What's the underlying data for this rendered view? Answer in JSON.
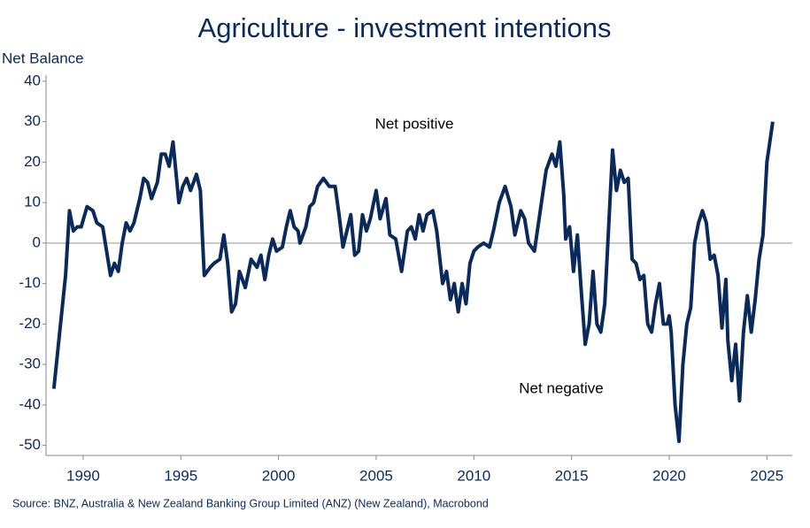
{
  "chart_data": {
    "type": "line",
    "title": "Agriculture - investment intentions",
    "y_label": "Net Balance",
    "source": "Source: BNZ, Australia & New Zealand Banking Group Limited (ANZ) (New Zealand), Macrobond",
    "annotations": [
      {
        "text": "Net positive"
      },
      {
        "text": "Net negative"
      }
    ],
    "xlim": [
      1988.1,
      2026.3
    ],
    "ylim": [
      -52.5,
      41.5
    ],
    "xticks": [
      1990,
      1995,
      2000,
      2005,
      2010,
      2015,
      2020,
      2025
    ],
    "yticks": [
      -50,
      -40,
      -30,
      -20,
      -10,
      0,
      10,
      20,
      30,
      40
    ],
    "zero_line": true,
    "series": [
      {
        "name": "Net Balance",
        "color": "#0b2a5c",
        "x": [
          1988.5,
          1988.8,
          1989.1,
          1989.3,
          1989.5,
          1989.7,
          1989.9,
          1990.2,
          1990.5,
          1990.7,
          1991.0,
          1991.2,
          1991.4,
          1991.6,
          1991.8,
          1992.0,
          1992.2,
          1992.4,
          1992.6,
          1992.9,
          1993.1,
          1993.3,
          1993.5,
          1993.8,
          1994.0,
          1994.2,
          1994.4,
          1994.6,
          1994.9,
          1995.1,
          1995.3,
          1995.5,
          1995.8,
          1996.0,
          1996.1,
          1996.2,
          1996.5,
          1996.7,
          1997.0,
          1997.2,
          1997.4,
          1997.6,
          1997.8,
          1998.0,
          1998.3,
          1998.6,
          1998.9,
          1999.1,
          1999.3,
          1999.5,
          1999.7,
          1999.9,
          2000.2,
          2000.4,
          2000.6,
          2000.8,
          2001.0,
          2001.1,
          2001.4,
          2001.6,
          2001.8,
          2002.0,
          2002.3,
          2002.6,
          2002.9,
          2003.1,
          2003.3,
          2003.5,
          2003.7,
          2003.9,
          2004.1,
          2004.3,
          2004.5,
          2004.7,
          2005.0,
          2005.2,
          2005.5,
          2005.7,
          2006.0,
          2006.3,
          2006.6,
          2006.8,
          2007.0,
          2007.2,
          2007.4,
          2007.6,
          2007.9,
          2008.1,
          2008.4,
          2008.6,
          2008.8,
          2009.0,
          2009.2,
          2009.4,
          2009.6,
          2009.8,
          2010.0,
          2010.2,
          2010.5,
          2010.8,
          2011.0,
          2011.3,
          2011.6,
          2011.9,
          2012.1,
          2012.4,
          2012.6,
          2012.8,
          2013.1,
          2013.4,
          2013.7,
          2014.0,
          2014.2,
          2014.4,
          2014.6,
          2014.7,
          2014.9,
          2015.1,
          2015.3,
          2015.5,
          2015.7,
          2015.9,
          2016.1,
          2016.3,
          2016.5,
          2016.7,
          2016.9,
          2017.1,
          2017.3,
          2017.5,
          2017.7,
          2017.9,
          2018.1,
          2018.3,
          2018.5,
          2018.7,
          2018.9,
          2019.1,
          2019.3,
          2019.5,
          2019.7,
          2019.9,
          2020.0,
          2020.1,
          2020.3,
          2020.5,
          2020.7,
          2020.9,
          2021.1,
          2021.3,
          2021.5,
          2021.7,
          2021.9,
          2022.1,
          2022.3,
          2022.5,
          2022.7,
          2022.9,
          2023.0,
          2023.2,
          2023.4,
          2023.6,
          2023.8,
          2024.0,
          2024.2,
          2024.4,
          2024.6,
          2024.8,
          2025.0,
          2025.3
        ],
        "values": [
          -36,
          -22,
          -8,
          8,
          3,
          4,
          4,
          9,
          8,
          5,
          4,
          -2,
          -8,
          -5,
          -7,
          0,
          5,
          3,
          5,
          11,
          16,
          15,
          11,
          15,
          22,
          22,
          19,
          25,
          10,
          14,
          16,
          13,
          17,
          13,
          2,
          -8,
          -6,
          -5,
          -4,
          2,
          -5,
          -17,
          -15,
          -7,
          -11,
          -4,
          -6,
          -3,
          -9,
          -3,
          1,
          -2,
          -1,
          4,
          8,
          4,
          3,
          0,
          4,
          9,
          10,
          14,
          16,
          14,
          14,
          7,
          -1,
          3,
          7,
          -3,
          -2,
          7,
          3,
          6,
          13,
          6,
          11,
          2,
          1,
          -7,
          3,
          4,
          1,
          7,
          3,
          7,
          8,
          3,
          -10,
          -7,
          -14,
          -10,
          -17,
          -10,
          -15,
          -5,
          -2,
          -1,
          0,
          -1,
          3,
          10,
          14,
          9,
          2,
          8,
          6,
          0,
          -2,
          8,
          18,
          22,
          19,
          25,
          12,
          1,
          4,
          -7,
          2,
          -12,
          -25,
          -20,
          -7,
          -20,
          -22,
          -15,
          4,
          23,
          13,
          18,
          15,
          16,
          -4,
          -5,
          -9,
          -8,
          -20,
          -22,
          -15,
          -10,
          -20,
          -20,
          -18,
          -22,
          -40,
          -49,
          -30,
          -20,
          -16,
          0,
          5,
          8,
          5,
          -4,
          -3,
          -8,
          -21,
          -9,
          -24,
          -34,
          -25,
          -39,
          -22,
          -13,
          -22,
          -14,
          -4,
          2,
          20,
          30
        ]
      }
    ]
  }
}
